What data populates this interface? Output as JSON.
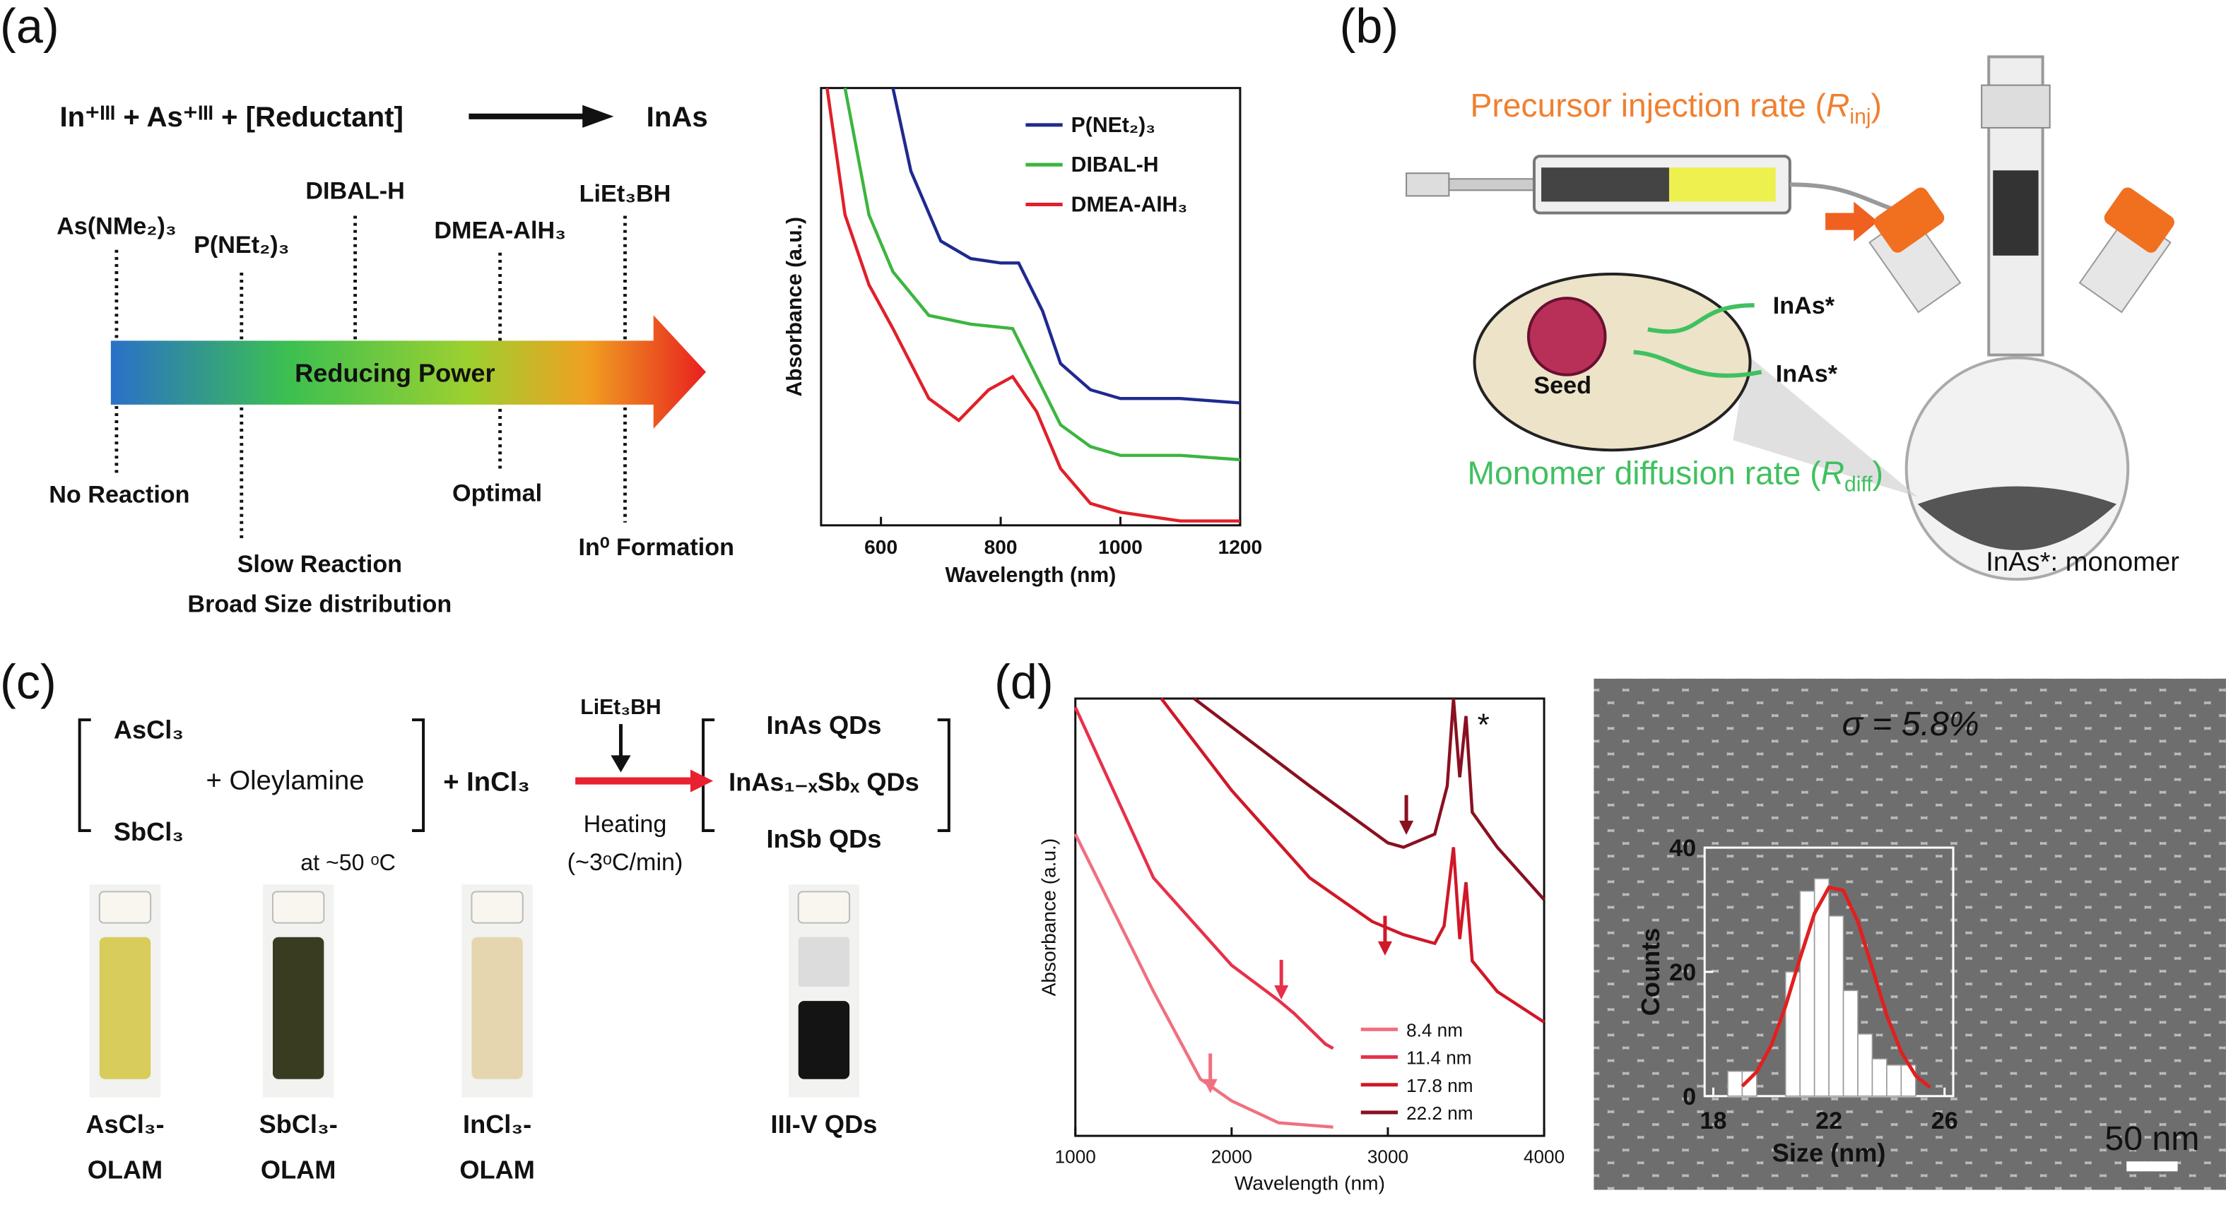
{
  "panels": {
    "a": "(a)",
    "b": "(b)",
    "c": "(c)",
    "d": "(d)"
  },
  "panel_a": {
    "equation": "In⁺ᴵᴵᴵ + As⁺ᴵᴵᴵ + [Reductant]",
    "product": "InAs",
    "reductants": [
      "As(NMe₂)₃",
      "P(NEt₂)₃",
      "DIBAL-H",
      "DMEA-AlH₃",
      "LiEt₃BH"
    ],
    "arrow_label": "Reducing Power",
    "outcomes": [
      "No Reaction",
      "Slow Reaction",
      "Broad Size distribution",
      "Optimal",
      "In⁰ Formation"
    ]
  },
  "panel_b": {
    "injection": {
      "text": "Precursor injection rate (",
      "symbol": "R",
      "sub": "inj",
      "close": ")"
    },
    "diffusion": {
      "text": "Monomer diffusion rate (",
      "symbol": "R",
      "sub": "diff",
      "close": ")"
    },
    "monomers": [
      "InAs*",
      "InAs*"
    ],
    "seed": "Seed",
    "footnote": "InAs*: monomer"
  },
  "panel_c": {
    "reactants": [
      "AsCl₃",
      "SbCl₃"
    ],
    "oleylamine": "+ Oleylamine",
    "temperature": "at ~50 ᵒC",
    "plus_incl3": "+ InCl₃",
    "reductant": "LiEt₃BH",
    "heating": "Heating",
    "rate": "(~3ᵒC/min)",
    "products": [
      "InAs QDs",
      "InAs₁₋ₓSbₓ QDs",
      "InSb QDs"
    ],
    "vials": [
      [
        "AsCl₃-",
        "OLAM"
      ],
      [
        "SbCl₃-",
        "OLAM"
      ],
      [
        "InCl₃-",
        "OLAM"
      ],
      [
        "III-V QDs"
      ]
    ]
  },
  "chart_data": [
    {
      "type": "line",
      "x_label": "Wavelength (nm)",
      "y_label": "Absorbance (a.u.)",
      "xlim": [
        500,
        1200
      ],
      "xticks": [
        600,
        800,
        1000,
        1200
      ],
      "ylim": [
        0,
        1
      ],
      "series": [
        {
          "name": "P(NEt₂)₃",
          "color": "#1f2a8f",
          "x": [
            620,
            650,
            700,
            750,
            800,
            830,
            870,
            900,
            950,
            1000,
            1100,
            1200
          ],
          "values": [
            1.0,
            0.81,
            0.65,
            0.61,
            0.6,
            0.6,
            0.49,
            0.37,
            0.31,
            0.29,
            0.29,
            0.28
          ]
        },
        {
          "name": "DIBAL-H",
          "color": "#3cb540",
          "x": [
            540,
            580,
            620,
            680,
            750,
            820,
            860,
            900,
            950,
            1000,
            1100,
            1200
          ],
          "values": [
            1.0,
            0.71,
            0.58,
            0.48,
            0.46,
            0.45,
            0.34,
            0.23,
            0.18,
            0.16,
            0.16,
            0.15
          ]
        },
        {
          "name": "DMEA-AlH₃",
          "color": "#e0202a",
          "x": [
            510,
            540,
            580,
            620,
            680,
            730,
            780,
            820,
            860,
            900,
            950,
            1000,
            1100,
            1200
          ],
          "values": [
            1.0,
            0.71,
            0.55,
            0.45,
            0.29,
            0.24,
            0.31,
            0.34,
            0.26,
            0.13,
            0.05,
            0.03,
            0.01,
            0.01
          ]
        }
      ]
    },
    {
      "type": "line",
      "x_label": "Wavelength (nm)",
      "y_label": "Absorbance (a.u.)",
      "annotation": "*",
      "xlim": [
        1000,
        4000
      ],
      "xticks": [
        1000,
        2000,
        3000,
        4000
      ],
      "ylim": [
        0,
        1
      ],
      "series": [
        {
          "name": "8.4 nm",
          "color": "#f07080",
          "x": [
            1000,
            1500,
            1800,
            2000,
            2300,
            2650
          ],
          "values": [
            0.69,
            0.33,
            0.13,
            0.08,
            0.03,
            0.02
          ]
        },
        {
          "name": "11.4 nm",
          "color": "#e8304a",
          "x": [
            1000,
            1500,
            2000,
            2300,
            2400,
            2600,
            2650
          ],
          "values": [
            0.98,
            0.59,
            0.39,
            0.31,
            0.28,
            0.21,
            0.2
          ]
        },
        {
          "name": "17.8 nm",
          "color": "#d01828",
          "x": [
            1550,
            2000,
            2500,
            2900,
            3100,
            3300,
            3360,
            3420,
            3460,
            3500,
            3540,
            3700,
            4000
          ],
          "values": [
            1.0,
            0.79,
            0.59,
            0.49,
            0.46,
            0.44,
            0.48,
            0.66,
            0.45,
            0.58,
            0.4,
            0.33,
            0.26
          ]
        },
        {
          "name": "22.2 nm",
          "color": "#8a1020",
          "x": [
            1760,
            2500,
            3000,
            3100,
            3300,
            3380,
            3420,
            3460,
            3500,
            3540,
            3700,
            4000
          ],
          "values": [
            1.0,
            0.8,
            0.67,
            0.66,
            0.69,
            0.8,
            1.0,
            0.82,
            0.96,
            0.74,
            0.66,
            0.54
          ]
        }
      ]
    },
    {
      "type": "histogram",
      "x_label": "Size (nm)",
      "y_label": "Counts",
      "annotation": "σ = 5.8%",
      "scale_bar": "50 nm",
      "xlim": [
        17.7,
        26.3
      ],
      "xticks": [
        18,
        22,
        26
      ],
      "ylim": [
        0,
        40
      ],
      "yticks": [
        0,
        20,
        40
      ],
      "color": "#ffffff",
      "bins": [
        18.5,
        19,
        19.5,
        20,
        20.5,
        21,
        21.5,
        22,
        22.5,
        23,
        23.5,
        24,
        24.5,
        25
      ],
      "values": [
        4,
        4,
        0,
        0,
        20,
        33,
        35,
        29,
        17,
        10,
        6,
        5,
        5
      ],
      "fit": {
        "color": "#e02020",
        "x": [
          19,
          19.5,
          20,
          20.5,
          21,
          21.5,
          22,
          22.5,
          23,
          23.5,
          24,
          24.5,
          25,
          25.5
        ],
        "values": [
          1.6,
          3.9,
          8.1,
          14.5,
          22.2,
          29.4,
          33.6,
          33.1,
          28.1,
          20.6,
          13.0,
          7.1,
          3.3,
          1.4
        ]
      }
    }
  ]
}
